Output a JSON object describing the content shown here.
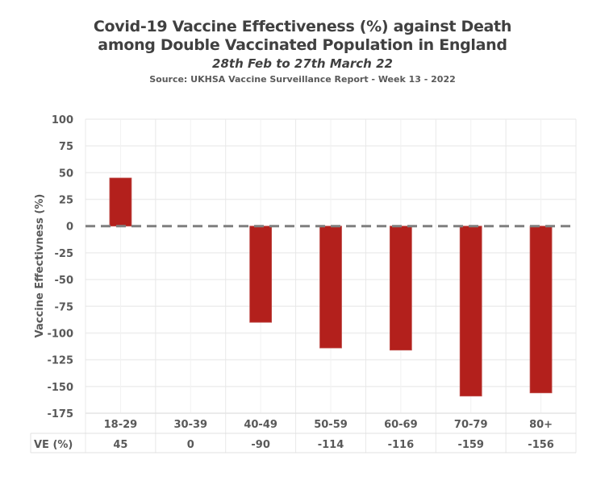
{
  "chart_data": {
    "type": "bar",
    "title": "Covid-19 Vaccine Effectiveness (%) against Death",
    "title_line2": "among Double Vaccinated Population in England",
    "subtitle": "28th Feb to 27th March 22",
    "source": "Source: UKHSA Vaccine Surveillance Report - Week 13 - 2022",
    "xlabel": "",
    "ylabel": "Vaccine Effectivness (%)",
    "ylim": [
      -175,
      100
    ],
    "yticks": [
      100,
      75,
      50,
      25,
      0,
      -25,
      -50,
      -75,
      -100,
      -125,
      -150,
      -175
    ],
    "categories": [
      "18-29",
      "30-39",
      "40-49",
      "50-59",
      "60-69",
      "70-79",
      "80+"
    ],
    "values": [
      45,
      0,
      -90,
      -114,
      -116,
      -159,
      -156
    ],
    "table_row_label": "VE (%)",
    "table_values": [
      "45",
      "0",
      "-90",
      "-114",
      "-116",
      "-159",
      "-156"
    ],
    "grid": true,
    "legend": "none",
    "reference_line": {
      "value": 0,
      "style": "dashed"
    },
    "colors": {
      "bar": "#b3201c",
      "bar_edge": "#c0504d",
      "grid": "#eeeeee",
      "zero_line": "#7f7f7f",
      "text": "#595959"
    }
  }
}
